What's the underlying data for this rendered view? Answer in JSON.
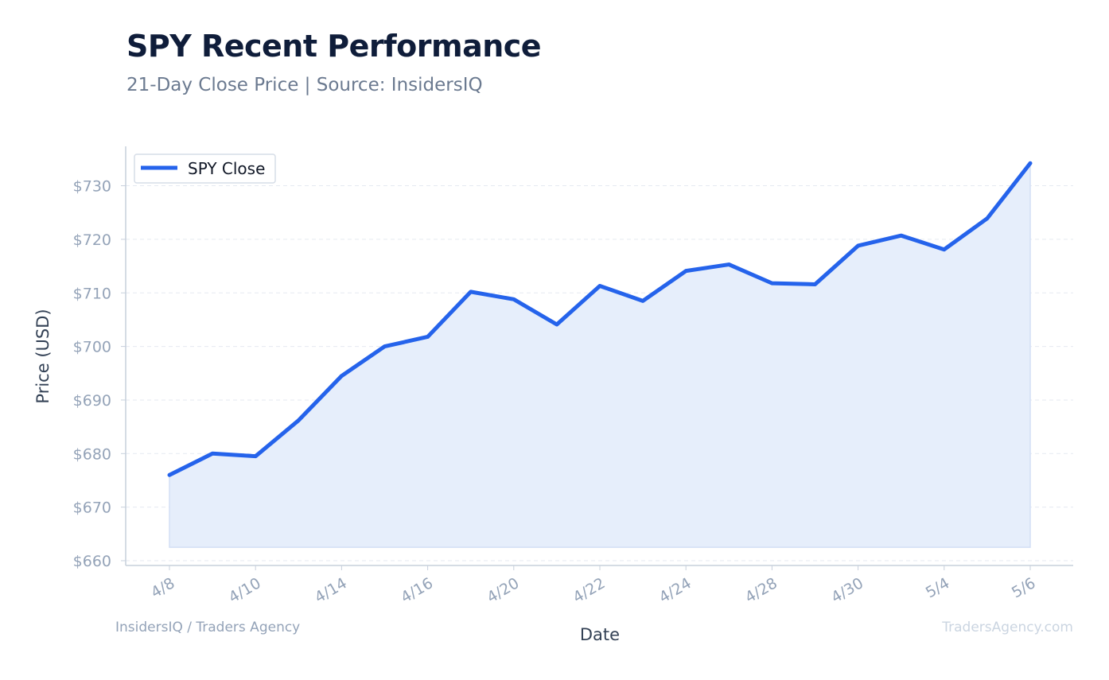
{
  "header": {
    "title": "SPY Recent Performance",
    "subtitle": "21-Day Close Price | Source: InsidersIQ"
  },
  "footer": {
    "left": "InsidersIQ / Traders Agency",
    "right": "TradersAgency.com"
  },
  "colors": {
    "line": "#2563eb",
    "fill": "#e6eefb",
    "grid": "#e5eaf1",
    "axis": "#c7d0dc"
  },
  "chart_data": {
    "type": "area",
    "title": "SPY Recent Performance",
    "subtitle": "21-Day Close Price | Source: InsidersIQ",
    "xlabel": "Date",
    "ylabel": "Price (USD)",
    "x": [
      "4/8",
      "4/9",
      "4/10",
      "4/13",
      "4/14",
      "4/15",
      "4/16",
      "4/17",
      "4/20",
      "4/21",
      "4/22",
      "4/23",
      "4/24",
      "4/27",
      "4/28",
      "4/29",
      "4/30",
      "5/1",
      "5/4",
      "5/5",
      "5/6"
    ],
    "x_ticks": [
      "4/8",
      "4/10",
      "4/14",
      "4/16",
      "4/20",
      "4/22",
      "4/24",
      "4/28",
      "4/30",
      "5/4",
      "5/6"
    ],
    "series": [
      {
        "name": "SPY Close",
        "values": [
          676.0,
          680.0,
          679.5,
          686.2,
          694.5,
          700.0,
          701.8,
          710.2,
          708.8,
          704.1,
          711.3,
          708.5,
          714.1,
          715.3,
          711.8,
          711.6,
          718.8,
          720.7,
          718.1,
          723.9,
          734.2
        ]
      }
    ],
    "ylim": [
      660,
      736.5
    ],
    "yticks": [
      660,
      670,
      680,
      690,
      700,
      710,
      720,
      730
    ],
    "ytick_labels": [
      "$660",
      "$670",
      "$680",
      "$690",
      "$700",
      "$710",
      "$720",
      "$730"
    ],
    "area_baseline": 662.5,
    "grid": true,
    "legend": "top-left"
  }
}
